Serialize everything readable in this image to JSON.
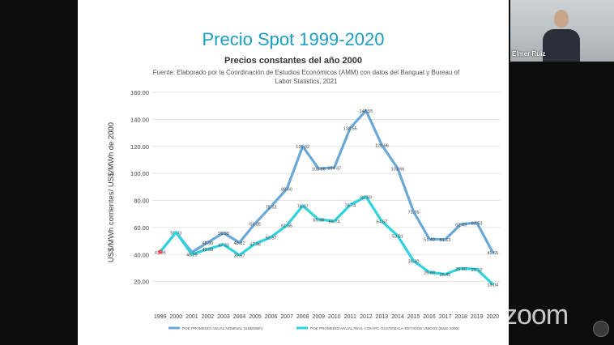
{
  "slide": {
    "title": "Precio Spot 1999-2020",
    "chart_title": "Precios constantes del año 2000",
    "source_line1": "Fuente: Elaborado por la Coordinación de Estudios Económicos (AMM) con datos del Banguat y Bureau of",
    "source_line2": "Labor Statistics, 2021"
  },
  "video": {
    "participant_name": "Elmer Ruiz",
    "app_logo": "zoom"
  },
  "colors": {
    "title": "#1a9fc4",
    "nominal_series": "#6aa8d6",
    "real_series": "#2ed3dd",
    "grid": "#dddddd"
  },
  "chart_data": {
    "type": "line",
    "ylabel": "US$/MWh corrientes/ US$/MWh de 2000",
    "ylim": [
      0,
      160
    ],
    "yticks": [
      "",
      "20.00",
      "40.00",
      "60.00",
      "80.00",
      "100.00",
      "120.00",
      "140.00",
      "160.00"
    ],
    "categories": [
      "1999",
      "2000",
      "2001",
      "2002",
      "2003",
      "2004",
      "2005",
      "2006",
      "2007",
      "2008",
      "2009",
      "2010",
      "2011",
      "2012",
      "2013",
      "2014",
      "2015",
      "2016",
      "2017",
      "2018",
      "2019",
      "2020"
    ],
    "grid": "horizontal",
    "legend_position": "bottom",
    "series": [
      {
        "name": "POE PROMEDIO ANUAL NOMINAL (US$/MWh)",
        "values": [
          41.96,
          56.43,
          41.65,
          48.9,
          55.98,
          48.81,
          63.05,
          75.53,
          88.6,
          120.02,
          103.56,
          104.37,
          133.55,
          146.55,
          120.96,
          103.66,
          71.76,
          51.4,
          51.13,
          62.43,
          63.53,
          41.65
        ],
        "labels": [
          "41.96",
          "56.43",
          "",
          "48.90",
          "55.98",
          "48.81",
          "63.05",
          "75.53",
          "88.60",
          "120.02",
          "103.56",
          "104.37",
          "133.55",
          "146.55",
          "120.96",
          "103.66",
          "71.76",
          "51.40",
          "51.13",
          "62.43",
          "63.53",
          "41.65"
        ]
      },
      {
        "name": "POE PROMEDIO ANUAL REAL CON IPC GUATEMALA-ESTADOS UNIDOS (Base 2000)",
        "values": [
          41.96,
          56.43,
          40.09,
          43.98,
          47.33,
          39.57,
          47.96,
          52.87,
          61.65,
          76.07,
          65.98,
          64.74,
          76.74,
          82.8,
          64.57,
          53.81,
          35.3,
          26.88,
          25.41,
          29.8,
          29.12,
          18.04
        ],
        "labels": [
          "",
          "",
          "40.09",
          "43.98",
          "47.33",
          "39.57",
          "47.96",
          "52.87",
          "61.65",
          "76.07",
          "65.98",
          "64.74",
          "76.74",
          "82.80",
          "64.57",
          "53.81",
          "35.30",
          "26.88",
          "25.41",
          "29.80",
          "29.12",
          "18.04"
        ]
      }
    ]
  }
}
